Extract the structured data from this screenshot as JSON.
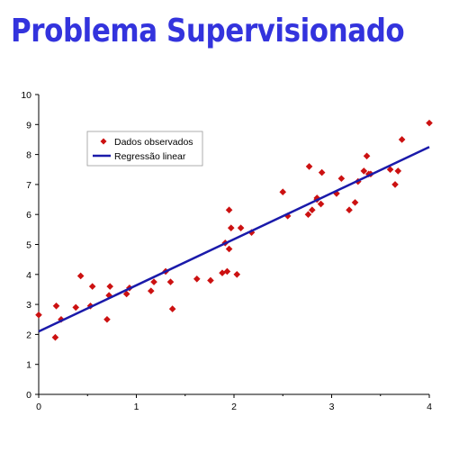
{
  "title": "Problema Supervisionado",
  "chart_data": {
    "type": "scatter",
    "title": "",
    "xlabel": "",
    "ylabel": "",
    "xlim": [
      0,
      4
    ],
    "ylim": [
      0,
      10
    ],
    "x_ticks": [
      "0",
      "1",
      "2",
      "3",
      "4"
    ],
    "y_ticks": [
      "0",
      "1",
      "2",
      "3",
      "4",
      "5",
      "6",
      "7",
      "8",
      "9",
      "10"
    ],
    "grid": false,
    "legend_position": "top-left",
    "colors": {
      "points": "#cc1111",
      "line": "#1a1aaa"
    },
    "series": [
      {
        "name": "Dados observados",
        "type": "scatter",
        "x": [
          0.0,
          0.17,
          0.18,
          0.23,
          0.38,
          0.43,
          0.53,
          0.55,
          0.7,
          0.72,
          0.73,
          0.9,
          0.93,
          1.15,
          1.18,
          1.3,
          1.35,
          1.37,
          1.62,
          1.76,
          1.88,
          1.91,
          1.93,
          1.95,
          1.95,
          1.97,
          2.03,
          2.07,
          2.18,
          2.5,
          2.55,
          2.76,
          2.77,
          2.8,
          2.85,
          2.85,
          2.89,
          2.9,
          3.05,
          3.1,
          3.18,
          3.24,
          3.27,
          3.33,
          3.36,
          3.38,
          3.4,
          3.6,
          3.65,
          3.68,
          3.72,
          4.0
        ],
        "y": [
          2.65,
          1.9,
          2.95,
          2.5,
          2.9,
          3.95,
          2.95,
          3.6,
          2.5,
          3.3,
          3.6,
          3.35,
          3.55,
          3.45,
          3.75,
          4.1,
          3.75,
          2.85,
          3.85,
          3.8,
          4.05,
          5.05,
          4.1,
          4.85,
          6.15,
          5.55,
          4.0,
          5.55,
          5.4,
          6.75,
          5.95,
          6.0,
          7.6,
          6.15,
          6.55,
          6.5,
          6.35,
          7.4,
          6.7,
          7.2,
          6.15,
          6.4,
          7.1,
          7.45,
          7.95,
          7.35,
          7.35,
          7.5,
          7.0,
          7.45,
          8.5,
          9.05
        ]
      },
      {
        "name": "Regressão linear",
        "type": "line",
        "x": [
          0,
          4
        ],
        "y": [
          2.1,
          8.25
        ]
      }
    ]
  }
}
